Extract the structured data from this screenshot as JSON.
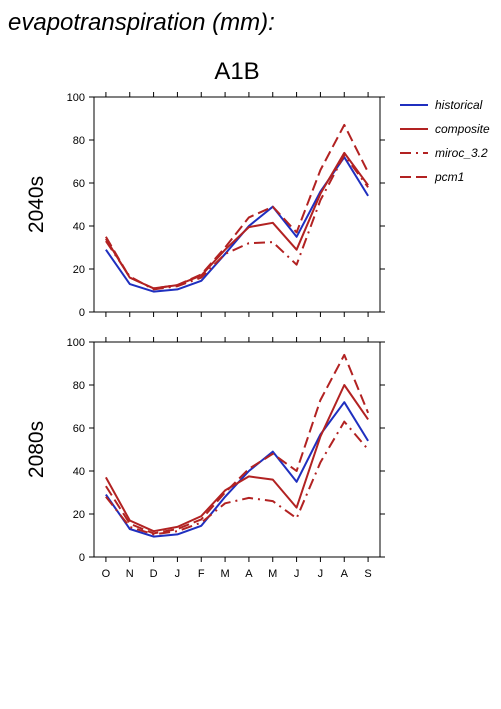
{
  "figure": {
    "title": "evapotranspiration (mm):",
    "scenario": "A1B"
  },
  "legend_placement": "right",
  "series_styles": [
    {
      "name": "historical",
      "color": "#1f2fbf",
      "dash": "solid"
    },
    {
      "name": "composite",
      "color": "#b22222",
      "dash": "solid"
    },
    {
      "name": "miroc_3.2",
      "color": "#b22222",
      "dash": "dashdot"
    },
    {
      "name": "pcm1",
      "color": "#b22222",
      "dash": "dashed"
    }
  ],
  "chart_data": [
    {
      "type": "line",
      "ylabel": "2040s",
      "ylim": [
        0,
        100
      ],
      "yticks": [
        0,
        20,
        40,
        60,
        80,
        100
      ],
      "categories": [
        "O",
        "N",
        "D",
        "J",
        "F",
        "M",
        "A",
        "M",
        "J",
        "J",
        "A",
        "S"
      ],
      "series": [
        {
          "name": "historical",
          "values": [
            29,
            13,
            9.5,
            10.5,
            14.5,
            27,
            40,
            49,
            35,
            56,
            72,
            54
          ]
        },
        {
          "name": "composite",
          "values": [
            34,
            16,
            11,
            12.5,
            17,
            29,
            39.5,
            41.5,
            29,
            55,
            74,
            59
          ]
        },
        {
          "name": "miroc_3.2",
          "values": [
            33,
            16.5,
            10.5,
            12,
            16,
            27,
            32,
            32.5,
            22,
            52,
            73,
            58
          ]
        },
        {
          "name": "pcm1",
          "values": [
            35,
            16,
            11,
            12.5,
            17.5,
            30,
            44,
            49,
            37,
            66,
            87,
            65
          ]
        }
      ]
    },
    {
      "type": "line",
      "ylabel": "2080s",
      "ylim": [
        0,
        100
      ],
      "yticks": [
        0,
        20,
        40,
        60,
        80,
        100
      ],
      "categories": [
        "O",
        "N",
        "D",
        "J",
        "F",
        "M",
        "A",
        "M",
        "J",
        "J",
        "A",
        "S"
      ],
      "series": [
        {
          "name": "historical",
          "values": [
            29,
            13,
            9.5,
            10.5,
            14.5,
            28,
            40,
            49,
            35,
            57,
            72,
            54
          ]
        },
        {
          "name": "composite",
          "values": [
            37,
            17,
            12,
            14,
            19,
            31,
            37.5,
            36,
            23,
            56,
            80,
            64
          ]
        },
        {
          "name": "miroc_3.2",
          "values": [
            28,
            14,
            10.5,
            12,
            16,
            25,
            27.5,
            26,
            18,
            44,
            63,
            50
          ]
        },
        {
          "name": "pcm1",
          "values": [
            33,
            15.5,
            11,
            13,
            17.5,
            30,
            41,
            48,
            40,
            73,
            94,
            67
          ]
        }
      ]
    }
  ]
}
